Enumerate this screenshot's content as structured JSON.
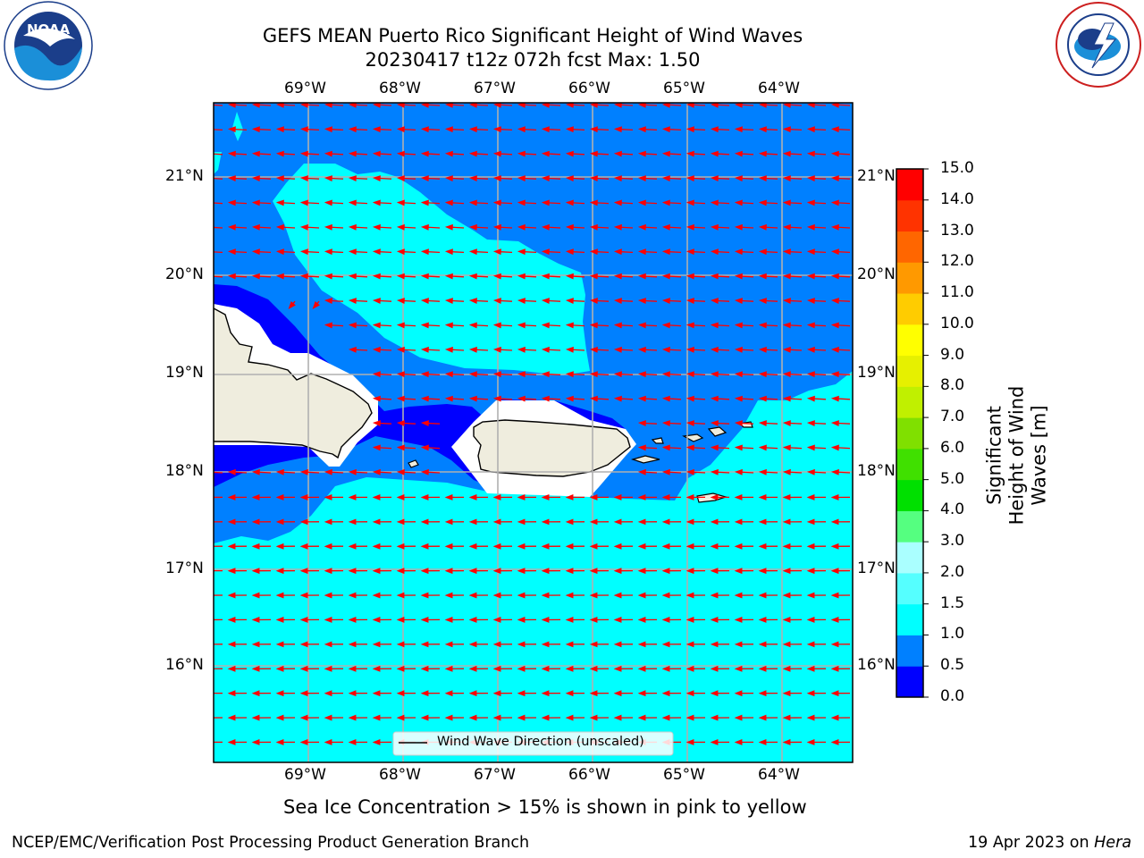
{
  "header": {
    "title_line1": "GEFS MEAN Puerto Rico Significant Height of Wind Waves",
    "title_line2": "20230417 t12z 072h fcst   Max: 1.50"
  },
  "logos": {
    "noaa_text": "NOAA",
    "noaa_ring": "NATIONAL OCEANIC AND ATMOSPHERIC ADMINISTRATION · U.S. DEPARTMENT OF COMMERCE",
    "nws_ring": "NATIONAL WEATHER SERVICE"
  },
  "map": {
    "lon_labels": [
      "69°W",
      "68°W",
      "67°W",
      "66°W",
      "65°W",
      "64°W"
    ],
    "lat_labels": [
      "21°N",
      "20°N",
      "19°N",
      "18°N",
      "17°N",
      "16°N"
    ],
    "legend_label": "Wind Wave Direction (unscaled)",
    "ocean_colors": {
      "deep_blue": "#0000ff",
      "mid_blue": "#0080ff",
      "cyan": "#00ffff",
      "land": "#efedde",
      "arrow": "#ff0000",
      "grid": "#b0b0b0"
    }
  },
  "colorbar": {
    "label": "Significant Height of Wind Waves [m]",
    "ticks": [
      "0.0",
      "0.5",
      "1.0",
      "1.5",
      "2.0",
      "3.0",
      "4.0",
      "5.0",
      "6.0",
      "7.0",
      "8.0",
      "9.0",
      "10.0",
      "11.0",
      "12.0",
      "13.0",
      "14.0",
      "15.0"
    ],
    "colors": [
      "#0000ff",
      "#0080ff",
      "#00ffff",
      "#55ffff",
      "#aaffff",
      "#55ff80",
      "#00e000",
      "#40e000",
      "#80e000",
      "#c0f000",
      "#e6f000",
      "#ffff00",
      "#ffcc00",
      "#ff9900",
      "#ff6600",
      "#ff3300",
      "#ff0000"
    ]
  },
  "notes": {
    "ice_note": "Sea Ice Concentration > 15% is shown in pink to yellow"
  },
  "footer": {
    "left": "NCEP/EMC/Verification Post Processing Product Generation Branch",
    "right_date": "19 Apr 2023 on ",
    "right_host": "Hera"
  }
}
